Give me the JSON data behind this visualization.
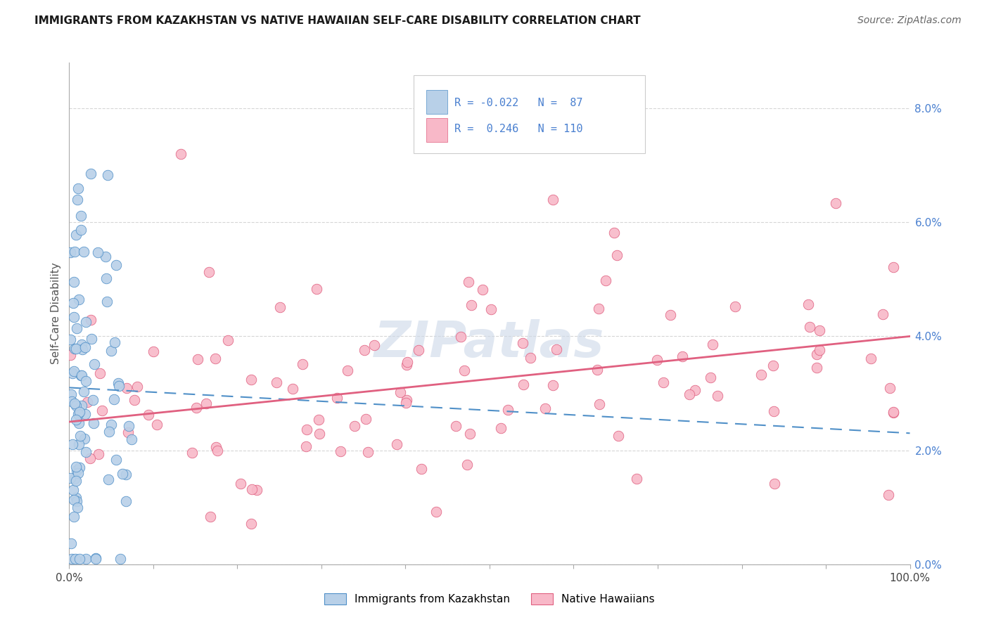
{
  "title": "IMMIGRANTS FROM KAZAKHSTAN VS NATIVE HAWAIIAN SELF-CARE DISABILITY CORRELATION CHART",
  "source": "Source: ZipAtlas.com",
  "ylabel": "Self-Care Disability",
  "ylabel_ticks": [
    "0.0%",
    "2.0%",
    "4.0%",
    "6.0%",
    "8.0%"
  ],
  "ylabel_tick_vals": [
    0.0,
    0.02,
    0.04,
    0.06,
    0.08
  ],
  "xlim": [
    0.0,
    1.0
  ],
  "ylim": [
    0.0,
    0.088
  ],
  "color_blue_fill": "#b8d0e8",
  "color_blue_edge": "#5090c8",
  "color_pink_fill": "#f8b8c8",
  "color_pink_edge": "#e06080",
  "color_blue_line": "#5090c8",
  "color_pink_line": "#e06080",
  "color_grid": "#cccccc",
  "color_title": "#1a1a1a",
  "color_source": "#666666",
  "color_watermark": "#ccd8e8",
  "color_ytick": "#4a80d0",
  "legend_label1": "Immigrants from Kazakhstan",
  "legend_label2": "Native Hawaiians",
  "blue_intercept": 0.031,
  "blue_slope": -0.008,
  "pink_intercept": 0.025,
  "pink_slope": 0.015
}
